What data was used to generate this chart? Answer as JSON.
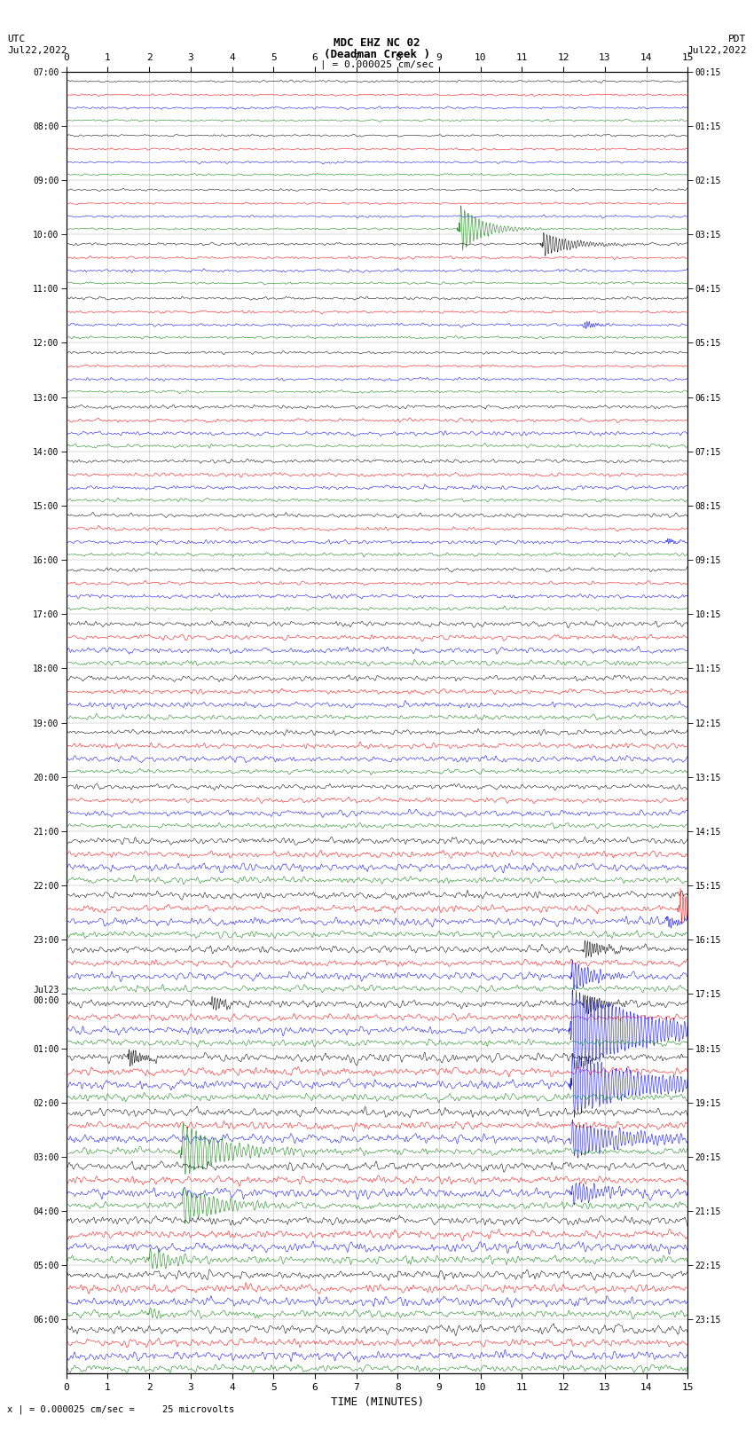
{
  "title_line1": "MDC EHZ NC 02",
  "title_line2": "(Deadman Creek )",
  "scale_label": "| = 0.000025 cm/sec",
  "left_label_top": "UTC",
  "left_label_bot": "Jul22,2022",
  "right_label_top": "PDT",
  "right_label_bot": "Jul22,2022",
  "xlabel": "TIME (MINUTES)",
  "bottom_note": "x | = 0.000025 cm/sec =     25 microvolts",
  "colors": [
    "black",
    "red",
    "blue",
    "green"
  ],
  "bg_color": "white",
  "xlim": [
    0,
    15
  ],
  "fig_width": 8.5,
  "fig_height": 16.13,
  "dpi": 100,
  "num_hour_rows": 24,
  "left_times": [
    "07:00",
    "08:00",
    "09:00",
    "10:00",
    "11:00",
    "12:00",
    "13:00",
    "14:00",
    "15:00",
    "16:00",
    "17:00",
    "18:00",
    "19:00",
    "20:00",
    "21:00",
    "22:00",
    "23:00",
    "Jul23\n00:00",
    "01:00",
    "02:00",
    "03:00",
    "04:00",
    "05:00",
    "06:00"
  ],
  "right_times": [
    "00:15",
    "01:15",
    "02:15",
    "03:15",
    "04:15",
    "05:15",
    "06:15",
    "07:15",
    "08:15",
    "09:15",
    "10:15",
    "11:15",
    "12:15",
    "13:15",
    "14:15",
    "15:15",
    "16:15",
    "17:15",
    "18:15",
    "19:15",
    "20:15",
    "21:15",
    "22:15",
    "23:15"
  ]
}
